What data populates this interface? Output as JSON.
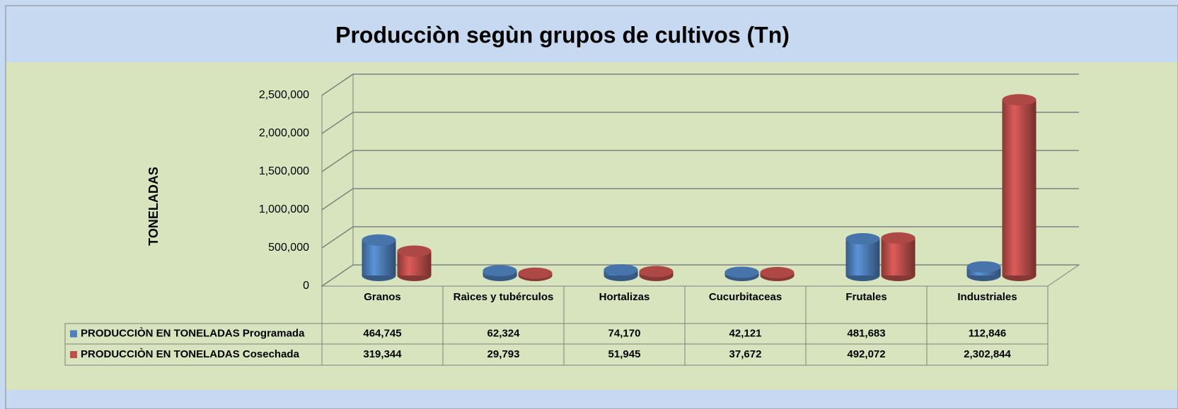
{
  "chart_data": {
    "type": "bar3d",
    "title": "Producciòn segùn grupos de cultivos (Tn)",
    "y_label": "TONELADAS",
    "categories": [
      "Granos",
      "Raìces y tubérculos",
      "Hortalizas",
      "Cucurbitaceas",
      "Frutales",
      "Industriales"
    ],
    "series": [
      {
        "name": "PRODUCCIÒN EN TONELADAS Programada",
        "color": "#4f81bd",
        "values": [
          464745,
          62324,
          74170,
          42121,
          481683,
          112846
        ],
        "value_labels": [
          "464,745",
          "62,324",
          "74,170",
          "42,121",
          "481,683",
          "112,846"
        ]
      },
      {
        "name": "PRODUCCIÒN EN TONELADAS Cosechada",
        "color": "#c0504d",
        "values": [
          319344,
          29793,
          51945,
          37672,
          492072,
          2302844
        ],
        "value_labels": [
          "319,344",
          "29,793",
          "51,945",
          "37,672",
          "492,072",
          "2,302,844"
        ]
      }
    ],
    "ylim": [
      0,
      2500000
    ],
    "yticks": [
      0,
      {
        "value": 500000,
        "label": "500,000"
      },
      {
        "value": 1000000,
        "label": "1,000,000"
      },
      {
        "value": 1500000,
        "label": "1,500,000"
      },
      {
        "value": 2000000,
        "label": "2,000,000"
      },
      {
        "value": 2500000,
        "label": "2,500,000"
      }
    ],
    "grid": true,
    "legend": "table"
  }
}
